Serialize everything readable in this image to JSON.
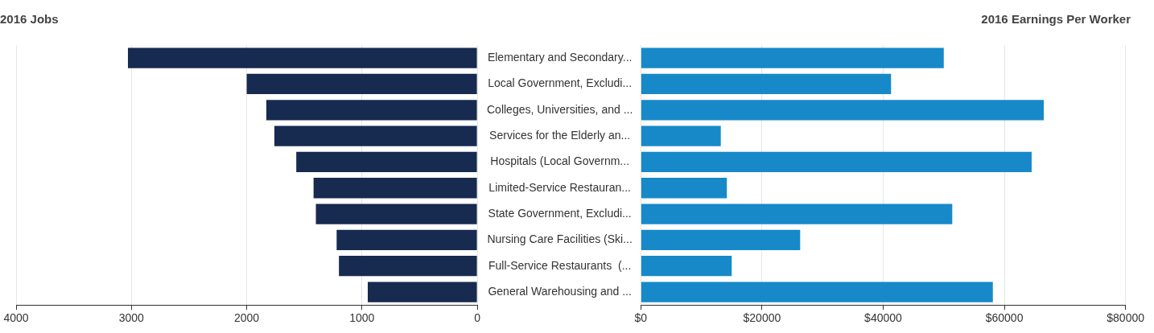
{
  "chart_data": [
    {
      "type": "bar",
      "orientation": "horizontal",
      "title": "2016 Jobs",
      "categories": [
        null,
        null,
        null,
        null,
        null,
        null,
        null,
        null,
        null,
        null
      ],
      "values": [
        3030,
        2000,
        1830,
        1760,
        1570,
        1420,
        1400,
        1220,
        1200,
        950
      ],
      "color": "#172a50",
      "xlim": [
        4000,
        0
      ],
      "xticks": [
        4000,
        3000,
        2000,
        1000,
        0
      ],
      "grid": "x"
    },
    {
      "type": "bar",
      "orientation": "horizontal",
      "title": "2016 Earnings Per Worker",
      "categories": [
        "Elementary and Secondary...",
        "Local Government, Excludi...",
        "Colleges, Universities, and ...",
        "Services for the Elderly an...",
        "Hospitals (Local Governm...",
        "Limited-Service Restauran...",
        "State Government, Excludi...",
        "Nursing Care Facilities (Ski...",
        "Full-Service Restaurants  (...",
        "General Warehousing and ..."
      ],
      "values": [
        50000,
        41300,
        66500,
        13200,
        64500,
        14200,
        51400,
        26300,
        15000,
        58100
      ],
      "color": "#1789c9",
      "xlim": [
        0,
        80000
      ],
      "xticks": [
        {
          "value": 0,
          "label": "$0"
        },
        {
          "value": 20000,
          "label": "$20000"
        },
        {
          "value": 40000,
          "label": "$40000"
        },
        {
          "value": 60000,
          "label": "$60000"
        },
        {
          "value": 80000,
          "label": "$80000"
        }
      ],
      "grid": "x"
    }
  ]
}
